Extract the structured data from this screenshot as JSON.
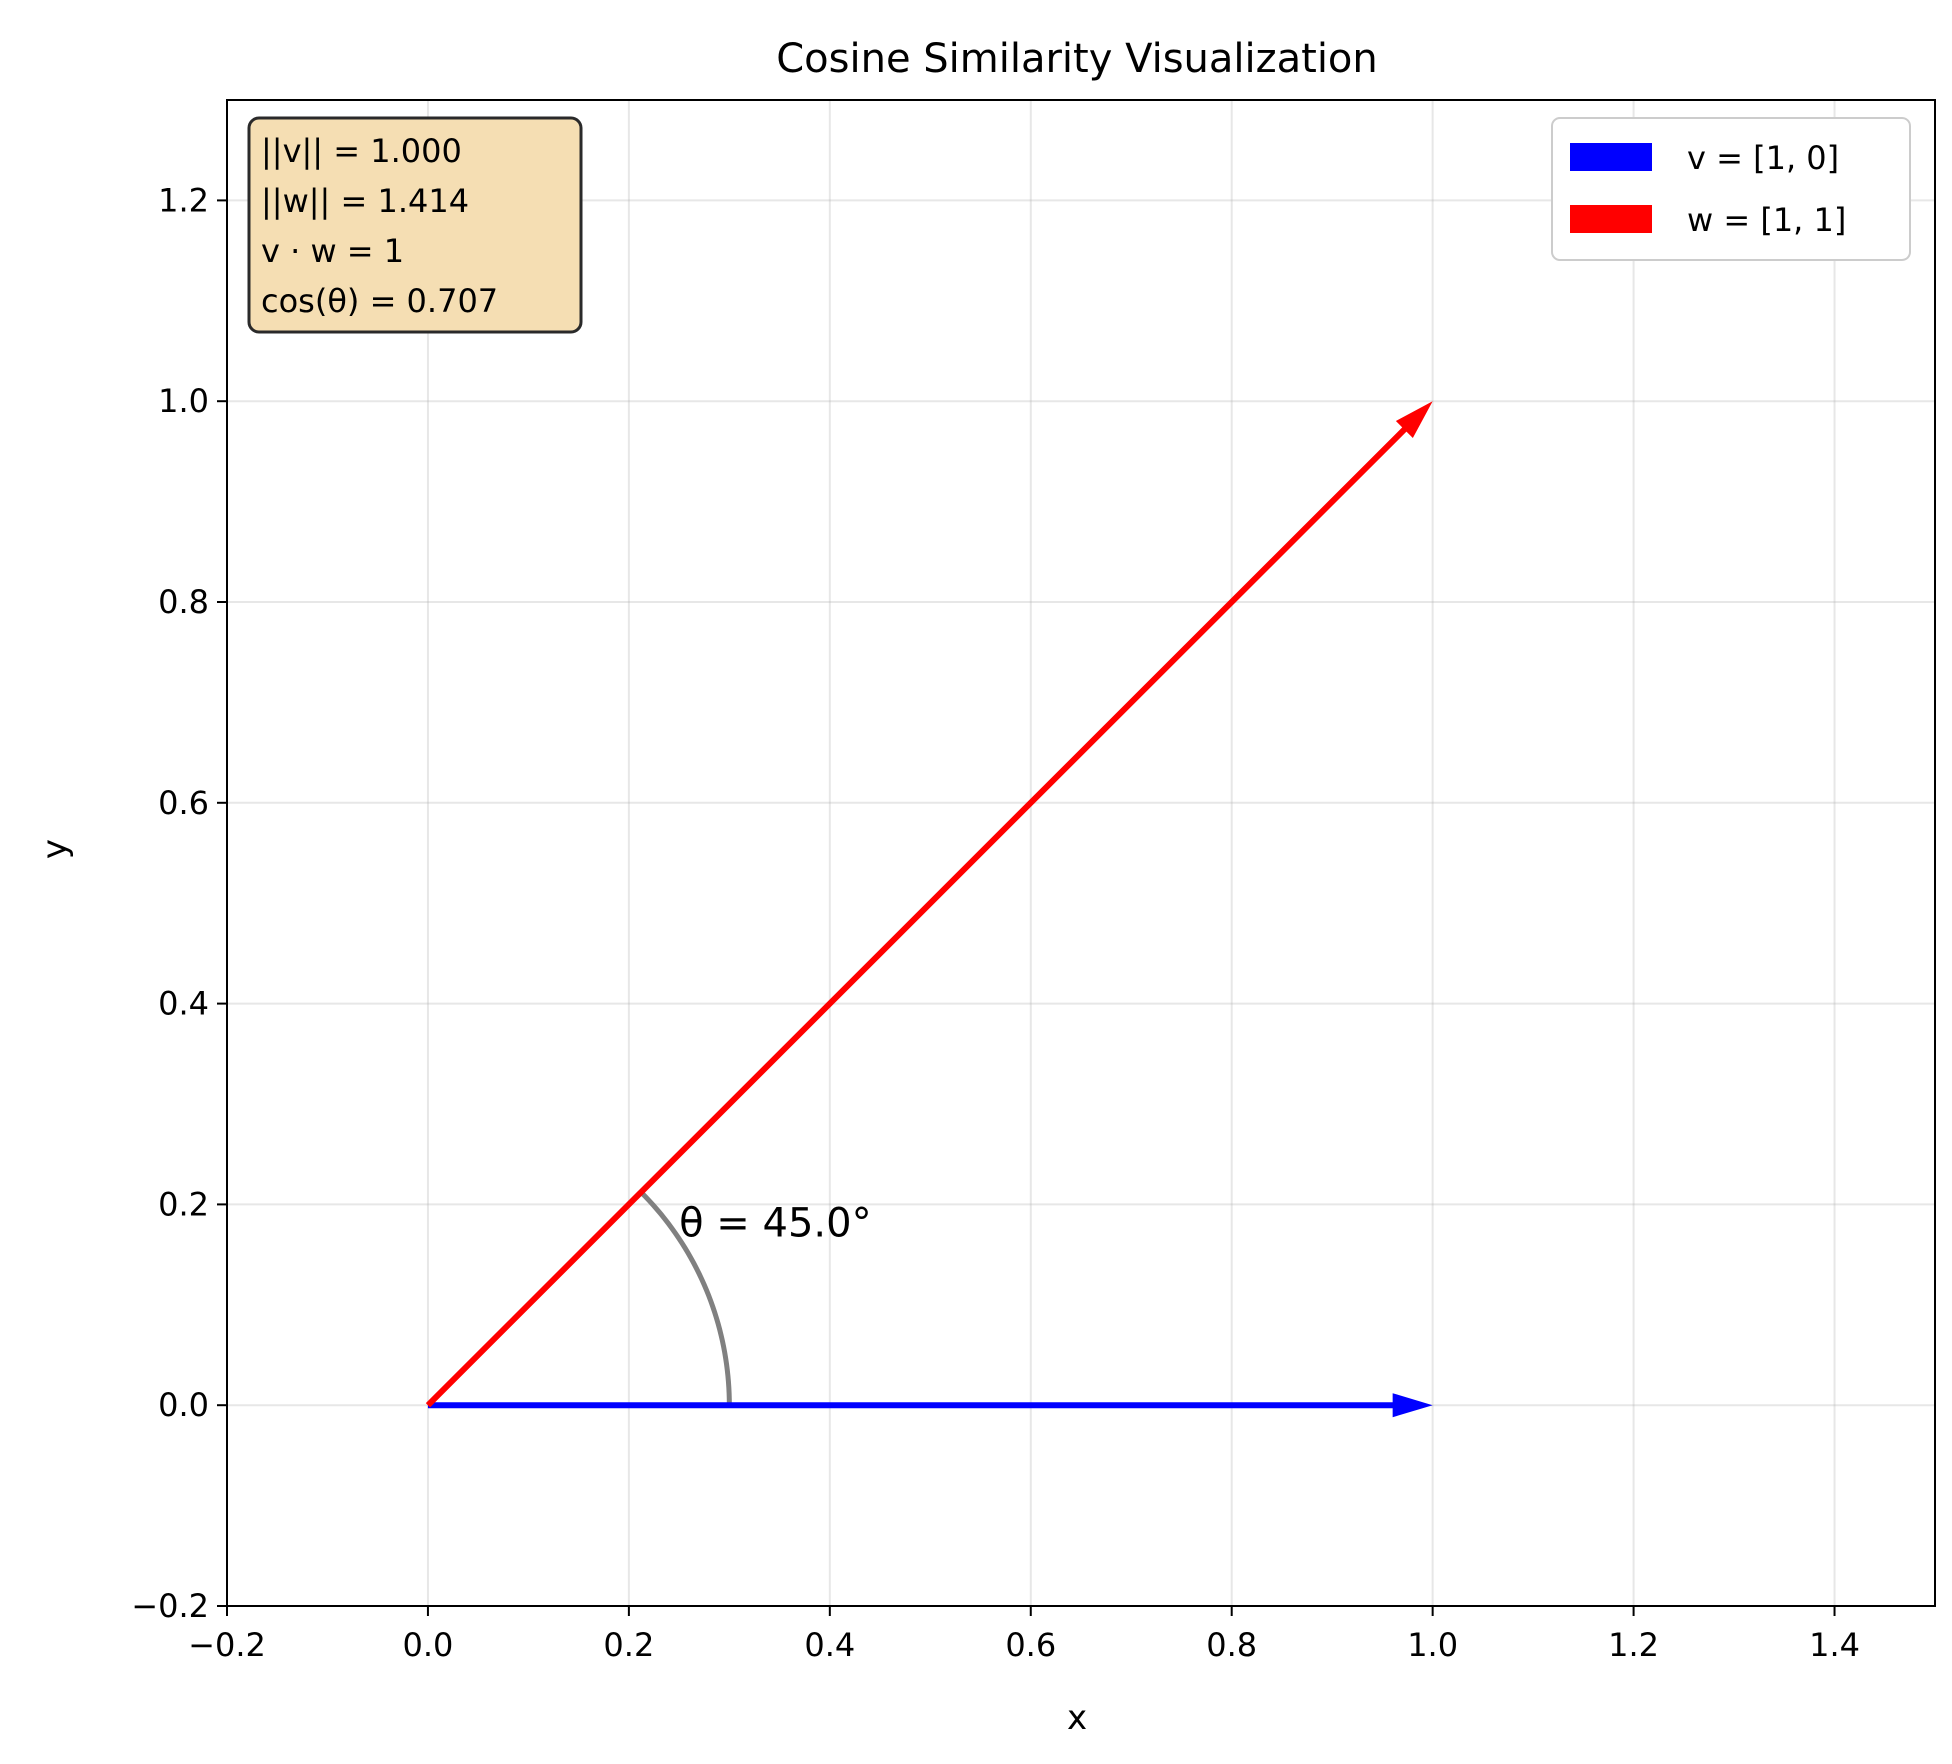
{
  "chart_data": {
    "type": "line",
    "title": "Cosine Similarity Visualization",
    "xlabel": "x",
    "ylabel": "y",
    "xlim": [
      -0.2,
      1.5
    ],
    "ylim": [
      -0.2,
      1.3
    ],
    "x_ticks": [
      -0.2,
      0.0,
      0.2,
      0.4,
      0.6,
      0.8,
      1.0,
      1.2,
      1.4
    ],
    "y_ticks": [
      -0.2,
      0.0,
      0.2,
      0.4,
      0.6,
      0.8,
      1.0,
      1.2
    ],
    "x_tick_labels": [
      "−0.2",
      "0.0",
      "0.2",
      "0.4",
      "0.6",
      "0.8",
      "1.0",
      "1.2",
      "1.4"
    ],
    "y_tick_labels": [
      "−0.2",
      "0.0",
      "0.2",
      "0.4",
      "0.6",
      "0.8",
      "1.0",
      "1.2"
    ],
    "grid": true,
    "legend_position": "top-right",
    "series": [
      {
        "name": "v = [1, 0]",
        "color": "#0000ff",
        "from": [
          0,
          0
        ],
        "to": [
          1,
          0
        ]
      },
      {
        "name": "w = [1, 1]",
        "color": "#ff0000",
        "from": [
          0,
          0
        ],
        "to": [
          1,
          1
        ]
      }
    ],
    "angle_arc": {
      "color": "#808080",
      "radius": 0.3,
      "start_deg": 0,
      "end_deg": 45
    },
    "angle_label": {
      "text": "θ = 45.0°",
      "x": 0.25,
      "y": 0.17
    },
    "info_box": {
      "position": "top-left",
      "background": "#f5deb3",
      "lines": [
        "||v|| = 1.000",
        "||w|| = 1.414",
        "v · w = 1",
        "cos(θ) = 0.707"
      ]
    }
  }
}
